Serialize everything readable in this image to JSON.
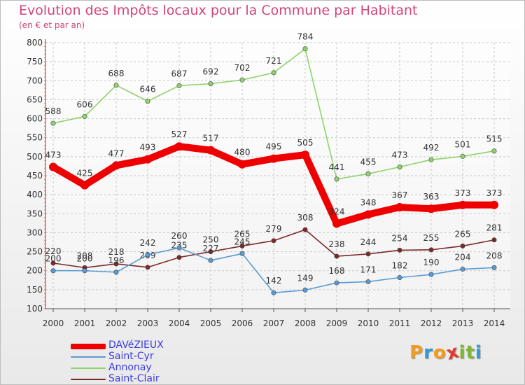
{
  "header": {
    "title": "Evolution des Impôts locaux pour la Commune par Habitant",
    "subtitle": "(en € et par an)"
  },
  "brand": {
    "letters": [
      "P",
      "r",
      "o",
      "x",
      "i",
      "t",
      "i"
    ],
    "colors": [
      "#f39c1b",
      "#2e9ad8",
      "#f39c1b",
      "#e33a2e",
      "#7cb733",
      "#7cb733",
      "#2e9ad8"
    ]
  },
  "chart_data": {
    "type": "line",
    "title": "Evolution des Impôts locaux pour la Commune par Habitant",
    "subtitle": "(en € et par an)",
    "xlabel": "",
    "ylabel": "",
    "ylim": [
      100,
      800
    ],
    "yticks": [
      100,
      150,
      200,
      250,
      300,
      350,
      400,
      450,
      500,
      550,
      600,
      650,
      700,
      750,
      800
    ],
    "grid": true,
    "legend_position": "bottom-left",
    "categories": [
      "2000",
      "2001",
      "2002",
      "2003",
      "2004",
      "2005",
      "2006",
      "2007",
      "2008",
      "2009",
      "2010",
      "2011",
      "2012",
      "2013",
      "2014"
    ],
    "series": [
      {
        "name": "DAVéZIEUX",
        "color": "#ee0000",
        "values": [
          473,
          425,
          477,
          493,
          527,
          517,
          480,
          495,
          505,
          324,
          348,
          367,
          363,
          373,
          373
        ]
      },
      {
        "name": "Saint-Cyr",
        "color": "#5b9bd5",
        "values": [
          200,
          200,
          196,
          242,
          260,
          227,
          245,
          142,
          149,
          168,
          171,
          182,
          190,
          204,
          208
        ]
      },
      {
        "name": "Annonay",
        "color": "#8fd36b",
        "values": [
          588,
          606,
          688,
          646,
          687,
          692,
          702,
          721,
          784,
          441,
          455,
          473,
          492,
          501,
          515
        ]
      },
      {
        "name": "Saint-Clair",
        "color": "#7a2a2a",
        "values": [
          220,
          208,
          218,
          209,
          235,
          250,
          265,
          279,
          308,
          238,
          244,
          254,
          255,
          265,
          281
        ]
      }
    ]
  }
}
